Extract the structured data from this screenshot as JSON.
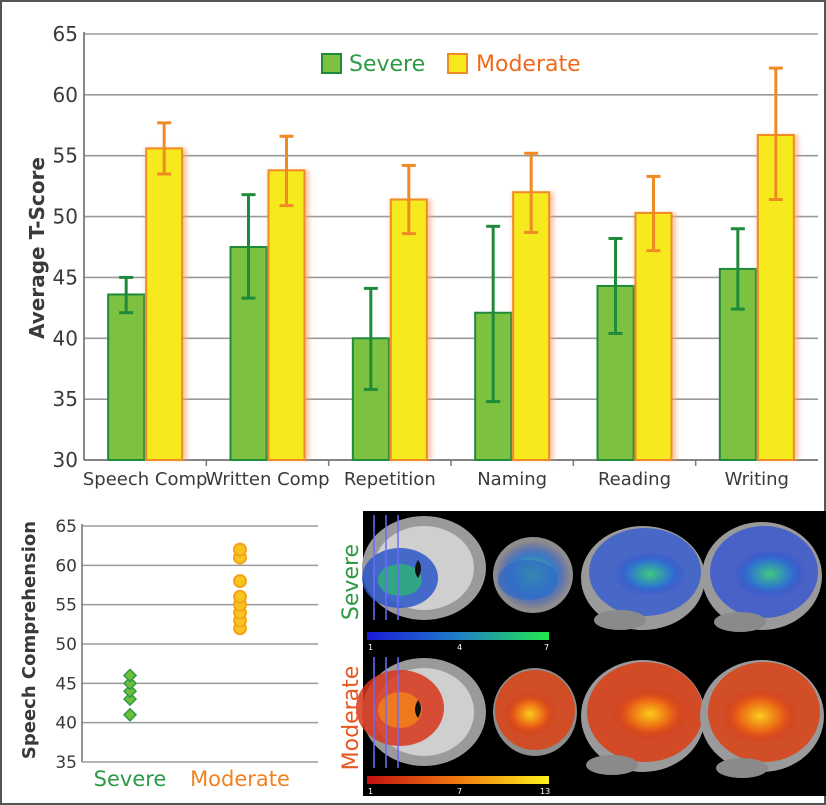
{
  "chart_data": [
    {
      "type": "bar",
      "ylabel": "Average T-Score",
      "ylim": [
        30,
        65
      ],
      "yticks": [
        30,
        35,
        40,
        45,
        50,
        55,
        60,
        65
      ],
      "grid": true,
      "legend_position": "top-center",
      "categories": [
        "Speech Comp",
        "Written Comp",
        "Repetition",
        "Naming",
        "Reading",
        "Writing"
      ],
      "series": [
        {
          "name": "Severe",
          "color": "#7dc141",
          "edge_color": "#1f8a3a",
          "values": [
            43.6,
            47.5,
            40.0,
            42.1,
            44.3,
            45.7
          ],
          "error_low": [
            42.1,
            43.3,
            35.8,
            34.8,
            40.4,
            42.4
          ],
          "error_high": [
            45.0,
            51.8,
            44.1,
            49.2,
            48.2,
            49.0
          ]
        },
        {
          "name": "Moderate",
          "color": "#f6ea1f",
          "edge_color": "#f08a24",
          "values": [
            55.6,
            53.8,
            51.4,
            52.0,
            50.3,
            56.7
          ],
          "error_low": [
            53.5,
            50.9,
            48.6,
            48.7,
            47.2,
            51.4
          ],
          "error_high": [
            57.7,
            56.6,
            54.2,
            55.2,
            53.3,
            62.2
          ]
        }
      ]
    },
    {
      "type": "scatter",
      "ylabel": "Speech Comprehension",
      "ylim": [
        35,
        65
      ],
      "yticks": [
        35,
        40,
        45,
        50,
        55,
        60,
        65
      ],
      "grid": true,
      "categories": [
        "Severe",
        "Moderate"
      ],
      "series": [
        {
          "name": "Severe",
          "color": "#2f9a45",
          "marker": "diamond",
          "values": [
            41,
            43,
            44,
            45,
            46
          ]
        },
        {
          "name": "Moderate",
          "color": "#f7a21b",
          "marker": "circle",
          "values": [
            52,
            53,
            54,
            55,
            56,
            58,
            61,
            62
          ]
        }
      ]
    }
  ],
  "brain_panel": {
    "rows": [
      {
        "label": "Severe",
        "label_color": "#2f9a45",
        "scale_min": "1",
        "scale_mid": "4",
        "scale_max": "7",
        "colormap": "blue-green"
      },
      {
        "label": "Moderate",
        "label_color": "#e8581f",
        "scale_min": "1",
        "scale_mid": "7",
        "scale_max": "13",
        "colormap": "red-yellow"
      }
    ]
  }
}
